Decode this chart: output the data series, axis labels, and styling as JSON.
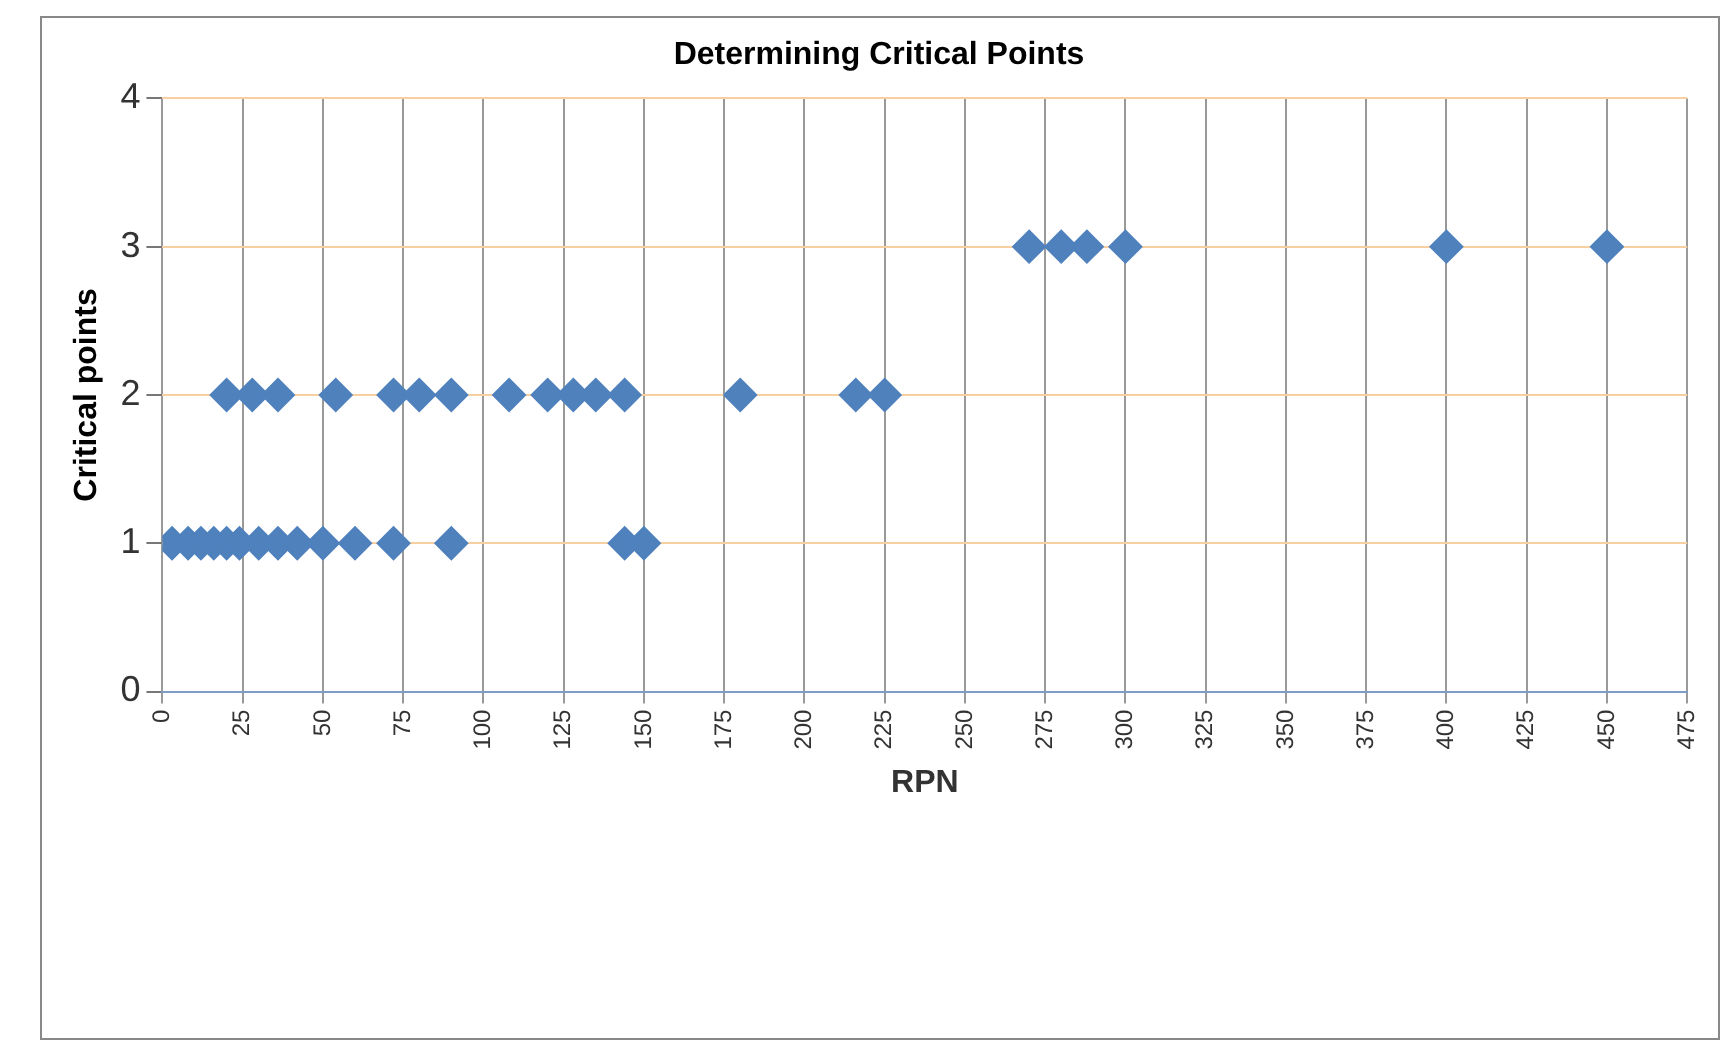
{
  "chart_data": {
    "type": "scatter",
    "title": "Determining Critical Points",
    "xlabel": "RPN",
    "ylabel": "Critical points",
    "series": [
      {
        "color": "#4f81bd",
        "x": [
          3,
          8,
          12,
          16,
          20,
          24,
          30,
          36,
          42,
          50,
          60,
          72,
          90,
          144,
          150
        ],
        "values": [
          1,
          1,
          1,
          1,
          1,
          1,
          1,
          1,
          1,
          1,
          1,
          1,
          1,
          1,
          1
        ]
      },
      {
        "color": "#4f81bd",
        "x": [
          20,
          28,
          36,
          54,
          72,
          80,
          90,
          108,
          120,
          128,
          135,
          144,
          180,
          216,
          225
        ],
        "values": [
          2,
          2,
          2,
          2,
          2,
          2,
          2,
          2,
          2,
          2,
          2,
          2,
          2,
          2,
          2
        ]
      },
      {
        "color": "#4f81bd",
        "x": [
          270,
          280,
          288,
          300,
          400,
          450
        ],
        "values": [
          3,
          3,
          3,
          3,
          3,
          3
        ]
      }
    ],
    "xlim": [
      0,
      475
    ],
    "xticks": [
      0,
      25,
      50,
      75,
      100,
      125,
      150,
      175,
      200,
      225,
      250,
      275,
      300,
      325,
      350,
      375,
      400,
      425,
      450,
      475
    ],
    "ylim": [
      0,
      4
    ],
    "yticks": [
      0,
      1,
      2,
      3,
      4
    ],
    "grid": true,
    "marker": "diamond",
    "legend": false
  }
}
